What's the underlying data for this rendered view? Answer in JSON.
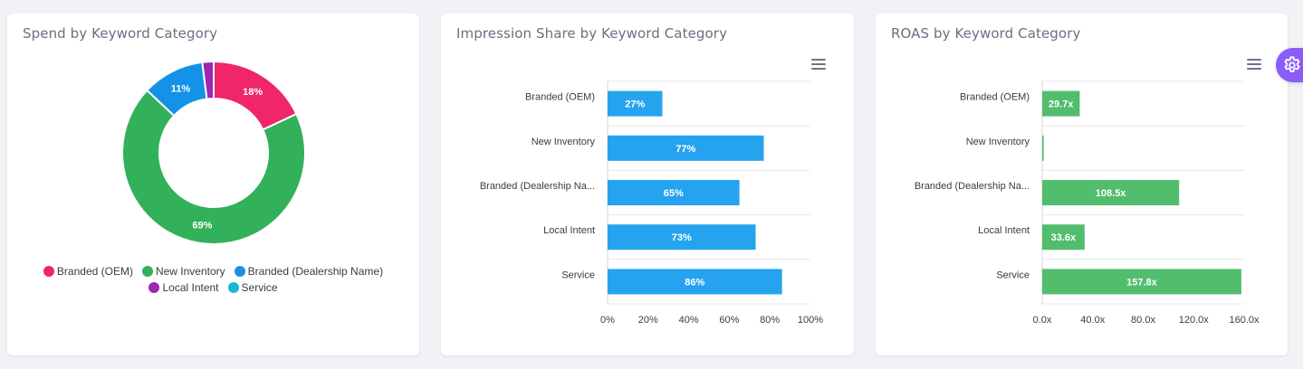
{
  "cards": {
    "spend": {
      "title": "Spend by Keyword Category"
    },
    "impression": {
      "title": "Impression Share by Keyword Category"
    },
    "roas": {
      "title": "ROAS by Keyword Category"
    }
  },
  "colors": {
    "branded_oem": "#f0256a",
    "new_inventory": "#33b05a",
    "branded_dealership": "#1392e8",
    "local_intent": "#9c27b0",
    "service": "#1bb6d4",
    "impression_bar": "#26a3ef",
    "roas_bar": "#52bd6d",
    "settings_tab": "#8b5cf6"
  },
  "chart_data": [
    {
      "type": "pie",
      "title": "Spend by Keyword Category",
      "donut": true,
      "categories": [
        "Branded (OEM)",
        "New Inventory",
        "Branded (Dealership Name)",
        "Local Intent",
        "Service"
      ],
      "values": [
        18,
        69,
        11,
        2,
        0
      ],
      "labels": [
        "18%",
        "69%",
        "11%",
        "",
        ""
      ],
      "legend": "bottom"
    },
    {
      "type": "bar",
      "orientation": "horizontal",
      "title": "Impression Share by Keyword Category",
      "categories": [
        "Branded (OEM)",
        "New Inventory",
        "Branded (Dealership Na...",
        "Local Intent",
        "Service"
      ],
      "values": [
        27,
        77,
        65,
        73,
        86
      ],
      "labels": [
        "27%",
        "77%",
        "65%",
        "73%",
        "86%"
      ],
      "xlim": [
        0,
        100
      ],
      "ticks": [
        "0%",
        "20%",
        "40%",
        "60%",
        "80%",
        "100%"
      ],
      "grid": true
    },
    {
      "type": "bar",
      "orientation": "horizontal",
      "title": "ROAS by Keyword Category",
      "categories": [
        "Branded (OEM)",
        "New Inventory",
        "Branded (Dealership Na...",
        "Local Intent",
        "Service"
      ],
      "values": [
        29.7,
        1.2,
        108.5,
        33.6,
        157.8
      ],
      "labels": [
        "29.7x",
        "",
        "108.5x",
        "33.6x",
        "157.8x"
      ],
      "xlim": [
        0,
        160
      ],
      "ticks": [
        "0.0x",
        "40.0x",
        "80.0x",
        "120.0x",
        "160.0x"
      ],
      "grid": true
    }
  ]
}
